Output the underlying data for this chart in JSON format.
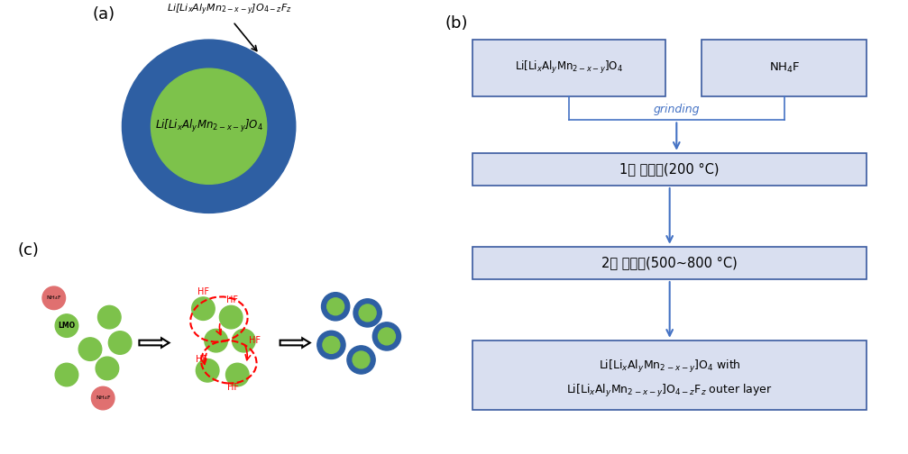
{
  "bg_color": "#ffffff",
  "panel_a_label": "(a)",
  "panel_b_label": "(b)",
  "panel_c_label": "(c)",
  "outer_circle_color": "#2e5fa3",
  "inner_circle_color": "#7dc24b",
  "inner_circle_text": "Li[Li$_x$Al$_y$Mn$_{2-x-y}$]O$_4$",
  "outer_label": "Li[Li$_x$Al$_y$Mn$_{2-x-y}$]O$_{4-z}$F$_z$",
  "box_face_color": "#d9dff0",
  "box_edge_color": "#3a5aa0",
  "box1_text": "Li[Li$_x$Al$_y$Mn$_{2-x-y}$]O$_4$",
  "box2_text": "NH$_4$F",
  "box3_text": "1차 열처리(200 °C)",
  "box4_text": "2차 열처리(500~800 °C)",
  "box5_line1": "Li[Li$_x$Al$_y$Mn$_{2-x-y}$]O$_4$ with",
  "box5_line2": "Li[Li$_x$Al$_y$Mn$_{2-x-y}$]O$_{4-z}$F$_z$ outer layer",
  "grinding_text": "grinding",
  "grinding_color": "#4472c4",
  "arrow_color": "#4472c4",
  "lmo_color": "#7dc24b",
  "nh4f_color": "#e07070",
  "hf_color": "#ff0000",
  "coated_outer_color": "#2e5fa3",
  "coated_inner_color": "#7dc24b"
}
